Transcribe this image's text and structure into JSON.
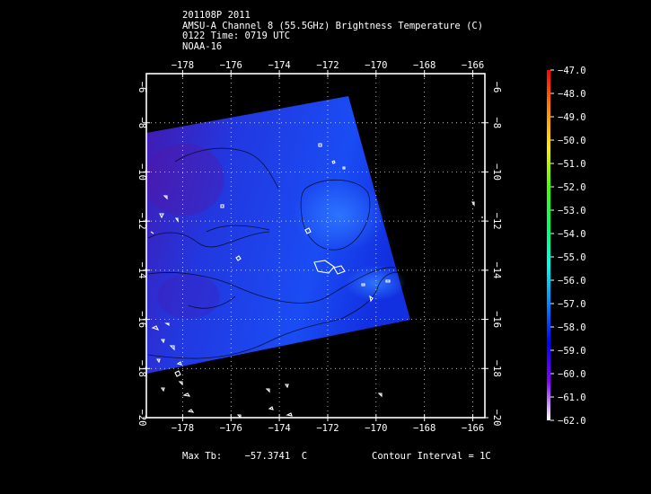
{
  "header": {
    "line1": "201108P 2011",
    "line2": "AMSU-A Channel 8 (55.5GHz) Brightness Temperature (C)",
    "line3": "0122 Time: 0719 UTC",
    "line4": "NOAA-16"
  },
  "map": {
    "lon_labels": [
      "−178",
      "−176",
      "−174",
      "−172",
      "−170",
      "−168",
      "−166"
    ],
    "lat_labels": [
      "−8",
      "−10",
      "−12",
      "−14",
      "−16",
      "−18",
      "−20"
    ],
    "top_left_lat": "−6",
    "lon_range": [
      -179.5,
      -165.5
    ],
    "lat_range": [
      -20,
      -6
    ],
    "gridlines": true,
    "swath_color": "#1f3fe0",
    "coastline_color": "#ffffff"
  },
  "colorbar": {
    "labels": [
      "−47.0",
      "−48.0",
      "−49.0",
      "−50.0",
      "−51.0",
      "−52.0",
      "−53.0",
      "−54.0",
      "−55.0",
      "−56.0",
      "−57.0",
      "−58.0",
      "−59.0",
      "−60.0",
      "−61.0",
      "−62.0"
    ],
    "range": [
      -62,
      -47
    ],
    "stops": [
      "#ff0000",
      "#ff8800",
      "#ffee00",
      "#44ff00",
      "#00ff66",
      "#00ffee",
      "#0088ff",
      "#0000ff",
      "#8800ff",
      "#ffffff"
    ]
  },
  "footer": {
    "max_label": "Max Tb:",
    "max_value": "−57.3741",
    "max_unit": "C",
    "contour": "Contour Interval = 1C"
  }
}
